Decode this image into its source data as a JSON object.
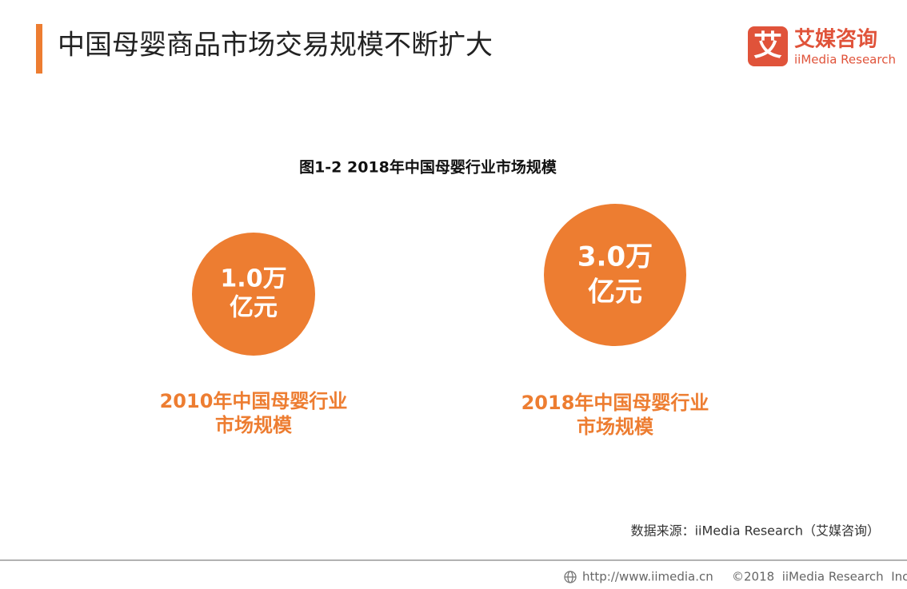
{
  "header": {
    "title": "中国母婴商品市场交易规模不断扩大",
    "logo_mark": "艾",
    "logo_name": "艾媒咨询",
    "logo_sub": "iiMedia Research"
  },
  "figure": {
    "caption": "图1-2 2018年中国母婴行业市场规模",
    "items": [
      {
        "value_lines": [
          "1.0万",
          "亿元"
        ],
        "label_lines": [
          "2010年中国母婴行业",
          "市场规模"
        ]
      },
      {
        "value_lines": [
          "3.0万",
          "亿元"
        ],
        "label_lines": [
          "2018年中国母婴行业",
          "市场规模"
        ]
      }
    ]
  },
  "source": "数据来源：iiMedia Research（艾媒咨询）",
  "footer": {
    "url": "http://www.iimedia.cn",
    "copyright": "©2018  iiMedia Research  Inc"
  }
}
